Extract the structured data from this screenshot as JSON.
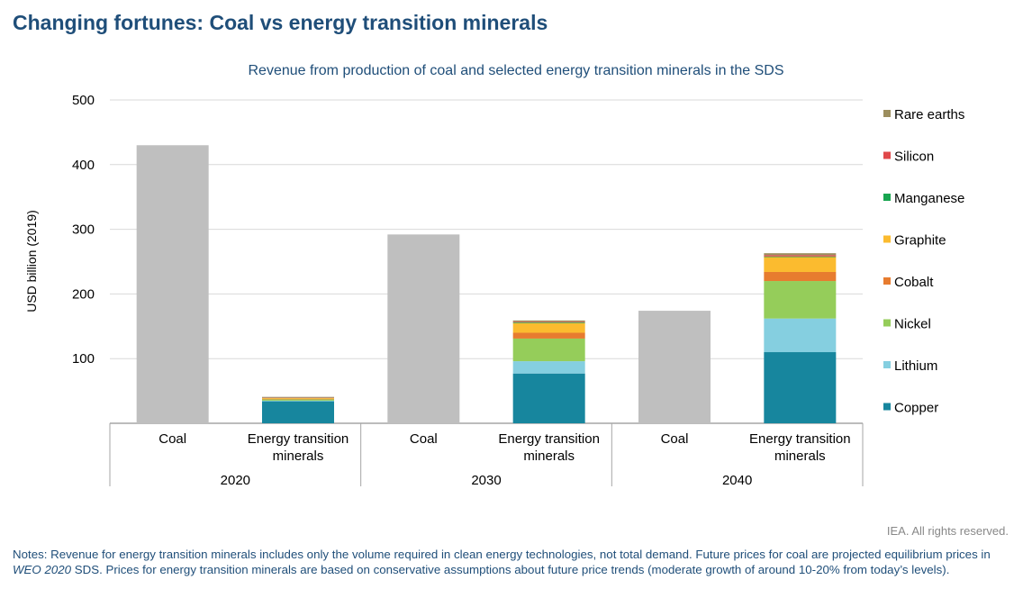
{
  "title": "Changing fortunes: Coal vs energy transition minerals",
  "credit": "IEA. All rights reserved.",
  "notes": {
    "prefix": "Notes: Revenue for energy transition minerals includes only the volume required in clean energy technologies, not total demand. Future prices for coal are projected equilibrium prices in ",
    "italic": "WEO 2020",
    "suffix": " SDS. Prices for energy transition minerals are based on conservative assumptions about future price trends (moderate growth of around 10-20% from today’s levels)."
  },
  "chart_data": {
    "type": "bar",
    "title": "Revenue from production of coal and selected energy transition minerals in the SDS",
    "ylabel": "USD billion (2019)",
    "ylim": [
      0,
      500
    ],
    "yticks": [
      100,
      200,
      300,
      400,
      500
    ],
    "grid": true,
    "legend": "right",
    "groups": [
      "2020",
      "2030",
      "2040"
    ],
    "bar_labels": [
      [
        "Coal"
      ],
      [
        "Energy transition",
        "minerals"
      ]
    ],
    "coal": {
      "color": "#bfbfbf",
      "values": [
        430,
        292,
        174
      ]
    },
    "series": [
      {
        "name": "Copper",
        "color": "#17869e",
        "values": [
          34,
          77,
          110
        ]
      },
      {
        "name": "Lithium",
        "color": "#85cfe0",
        "values": [
          1,
          19,
          52
        ]
      },
      {
        "name": "Nickel",
        "color": "#95cd5a",
        "values": [
          2,
          35,
          58
        ]
      },
      {
        "name": "Cobalt",
        "color": "#e77c2f",
        "values": [
          1,
          9,
          14
        ]
      },
      {
        "name": "Graphite",
        "color": "#fbbb2f",
        "values": [
          1,
          15,
          23
        ]
      },
      {
        "name": "Manganese",
        "color": "#18a550",
        "values": [
          0.3,
          1,
          1
        ]
      },
      {
        "name": "Silicon",
        "color": "#e0484a",
        "values": [
          0.5,
          1,
          2
        ]
      },
      {
        "name": "Rare earths",
        "color": "#9c8e5e",
        "values": [
          1,
          2,
          3
        ]
      }
    ]
  }
}
